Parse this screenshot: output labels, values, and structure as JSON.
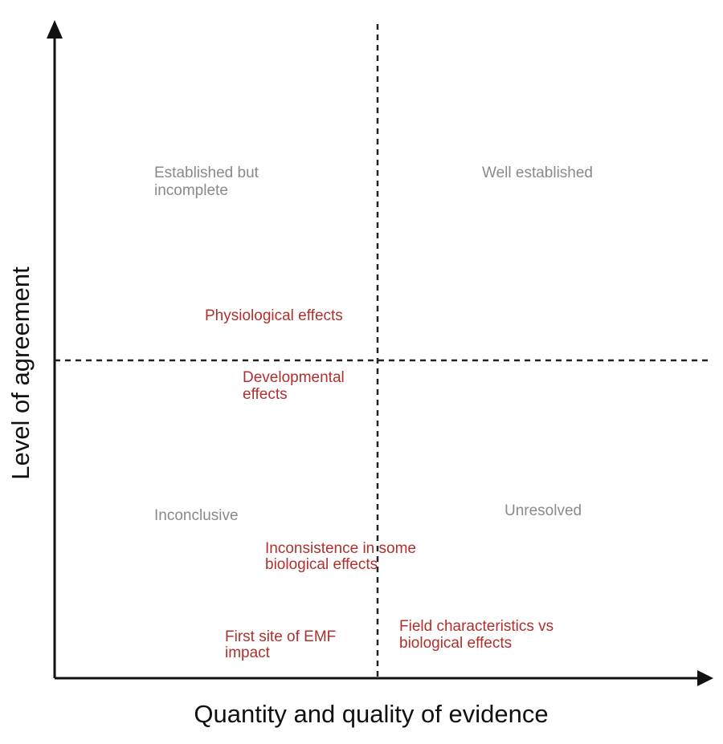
{
  "axes": {
    "y_label": "Level of agreement",
    "x_label": "Quantity and quality of evidence"
  },
  "quadrants": [
    {
      "lines": [
        "Established but",
        "incomplete"
      ]
    },
    {
      "lines": [
        "Well established"
      ]
    },
    {
      "lines": [
        "Inconclusive"
      ]
    },
    {
      "lines": [
        "Unresolved"
      ]
    }
  ],
  "items": [
    {
      "lines": [
        "Physiological effects"
      ]
    },
    {
      "lines": [
        "Developmental",
        "effects"
      ]
    },
    {
      "lines": [
        "Inconsistence in some",
        "biological effects"
      ]
    },
    {
      "lines": [
        "First site of EMF",
        "impact"
      ]
    },
    {
      "lines": [
        "Field characteristics vs",
        "biological effects"
      ]
    }
  ]
}
